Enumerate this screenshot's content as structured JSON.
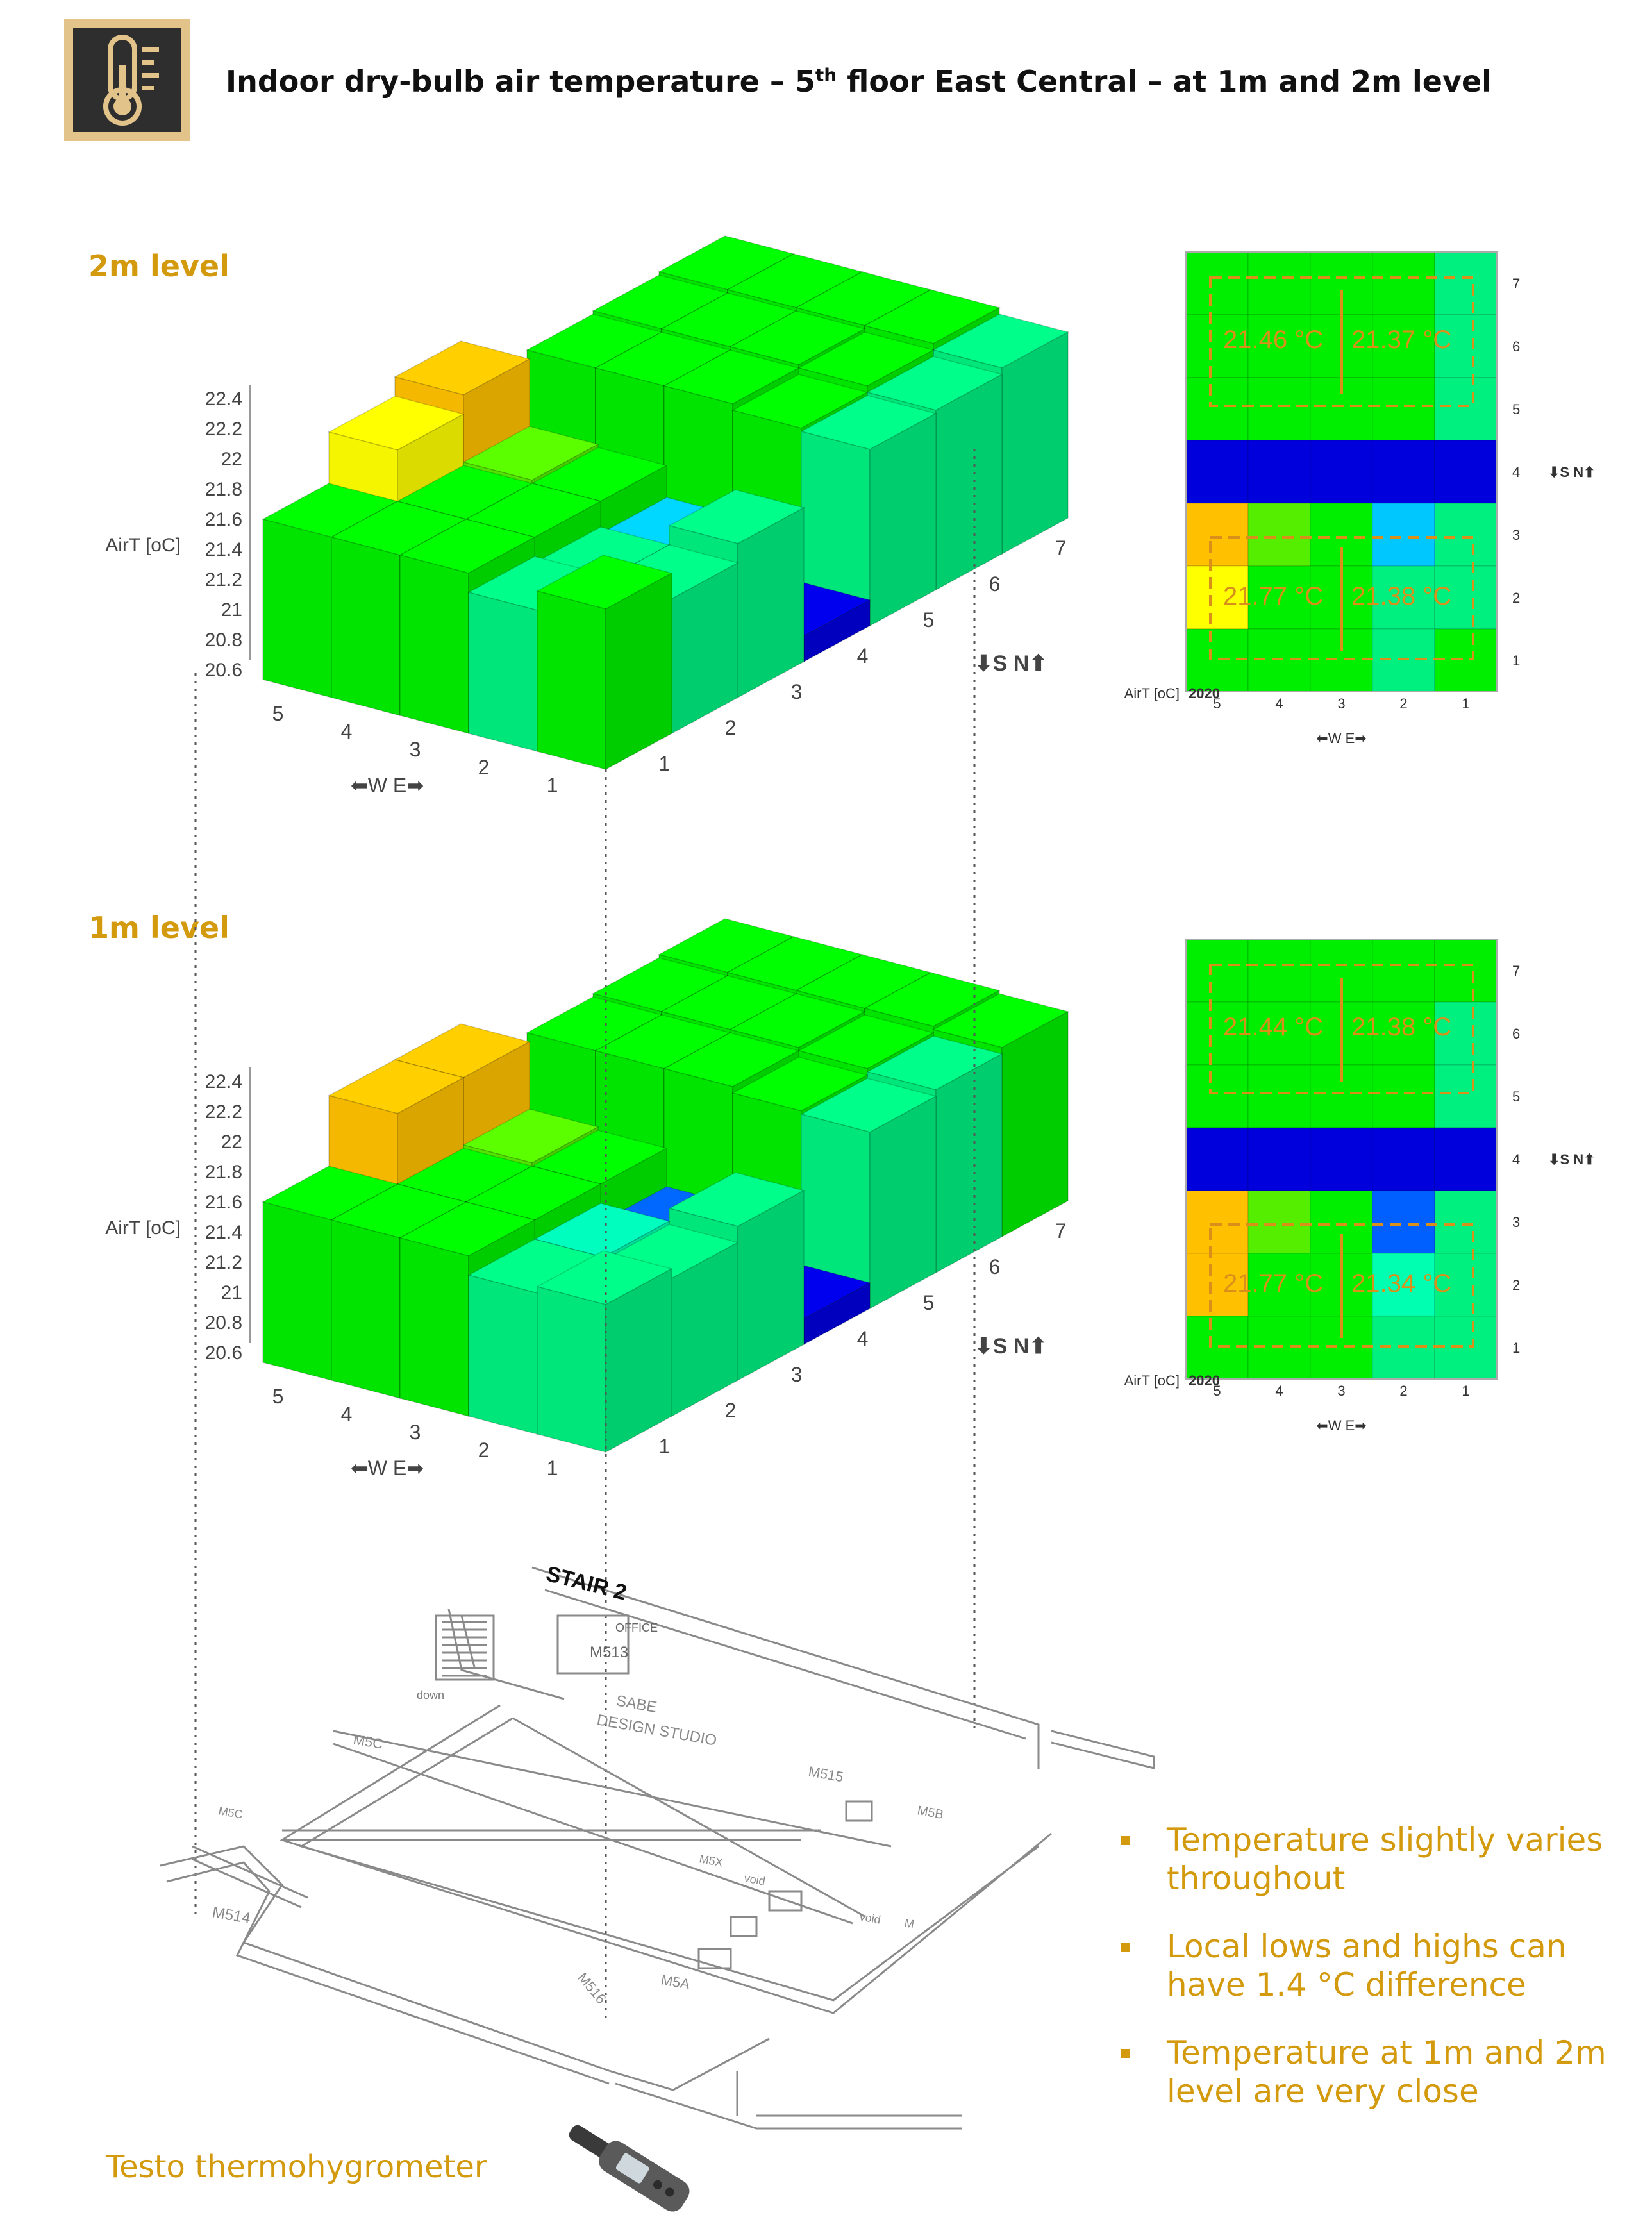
{
  "title": "Indoor dry-bulb air temperature – 5",
  "title_sup": "th",
  "title_rest": " floor East Central – at 1m and 2m level",
  "icon": "thermometer-icon",
  "colors": {
    "accent": "#d49a0e",
    "high": "#ffc000",
    "warm": "#ffff00",
    "normal": "#00ee00",
    "mint": "#00f080",
    "aqua": "#00ffb0",
    "cold": "#0000dd",
    "sky": "#00c8ff",
    "mid_blue": "#0060ff"
  },
  "levels": [
    {
      "label": "2m level",
      "iso": {
        "ylabel": "AirT [oC]",
        "yticks": [
          "22.4",
          "22.2",
          "22",
          "21.8",
          "21.6",
          "21.4",
          "21.2",
          "21",
          "20.8",
          "20.6"
        ],
        "x_ticks": [
          "5",
          "4",
          "3",
          "2",
          "1"
        ],
        "y_ticks": [
          "1",
          "2",
          "3",
          "4",
          "5",
          "6",
          "7"
        ],
        "we_label": "⬅W E➡",
        "sn_label": "⬇S N⬆"
      },
      "heatmap": {
        "grid": [
          [
            "normal",
            "normal",
            "normal",
            "normal",
            "mint"
          ],
          [
            "normal",
            "normal",
            "normal",
            "normal",
            "mint"
          ],
          [
            "normal",
            "normal",
            "normal",
            "normal",
            "mint"
          ],
          [
            "cold",
            "cold",
            "cold",
            "cold",
            "cold"
          ],
          [
            "high",
            "lime",
            "normal",
            "sky",
            "mint"
          ],
          [
            "warm",
            "normal",
            "normal",
            "mint",
            "mint"
          ],
          [
            "normal",
            "normal",
            "normal",
            "mint",
            "normal"
          ]
        ],
        "upper_values": [
          "21.46 °C",
          "21.37 °C"
        ],
        "lower_values": [
          "21.77 °C",
          "21.38 °C"
        ],
        "row_labels": [
          "7",
          "6",
          "5",
          "4",
          "3",
          "2",
          "1"
        ],
        "col_labels": [
          "5",
          "4",
          "3",
          "2",
          "1"
        ],
        "ylabel": "AirT [oC]",
        "ylabel_value": "2020",
        "we_label": "⬅W E➡",
        "sn_label": "⬇S N⬆"
      }
    },
    {
      "label": "1m level",
      "iso": {
        "ylabel": "AirT [oC]",
        "yticks": [
          "22.4",
          "22.2",
          "22",
          "21.8",
          "21.6",
          "21.4",
          "21.2",
          "21",
          "20.8",
          "20.6"
        ],
        "x_ticks": [
          "5",
          "4",
          "3",
          "2",
          "1"
        ],
        "y_ticks": [
          "1",
          "2",
          "3",
          "4",
          "5",
          "6",
          "7"
        ],
        "we_label": "⬅W E➡",
        "sn_label": "⬇S N⬆"
      },
      "heatmap": {
        "grid": [
          [
            "normal",
            "normal",
            "normal",
            "normal",
            "normal"
          ],
          [
            "normal",
            "normal",
            "normal",
            "normal",
            "mint"
          ],
          [
            "normal",
            "normal",
            "normal",
            "normal",
            "mint"
          ],
          [
            "cold",
            "cold",
            "cold",
            "cold",
            "cold"
          ],
          [
            "high",
            "lime",
            "normal",
            "mid_blue",
            "mint"
          ],
          [
            "high",
            "normal",
            "normal",
            "aqua",
            "mint"
          ],
          [
            "normal",
            "normal",
            "normal",
            "mint",
            "mint"
          ]
        ],
        "upper_values": [
          "21.44 °C",
          "21.38 °C"
        ],
        "lower_values": [
          "21.77 °C",
          "21.34 °C"
        ],
        "row_labels": [
          "7",
          "6",
          "5",
          "4",
          "3",
          "2",
          "1"
        ],
        "col_labels": [
          "5",
          "4",
          "3",
          "2",
          "1"
        ],
        "ylabel": "AirT [oC]",
        "ylabel_value": "2020",
        "we_label": "⬅W E➡",
        "sn_label": "⬇S N⬆"
      }
    }
  ],
  "plan": {
    "labels": [
      "STAIR 2",
      "OFFICE",
      "M513",
      "down",
      "SABE",
      "DESIGN STUDIO",
      "M5C",
      "M515",
      "M5C",
      "M5B",
      "M5X",
      "void",
      "M514",
      "M516",
      "M5A",
      "void",
      "M"
    ]
  },
  "bullets": [
    "Temperature slightly varies throughout",
    "Local lows and highs can have 1.4 °C difference",
    "Temperature at 1m and 2m level are very close"
  ],
  "device_label": "Testo thermohygrometer",
  "device_icon": "thermohygrometer-icon"
}
